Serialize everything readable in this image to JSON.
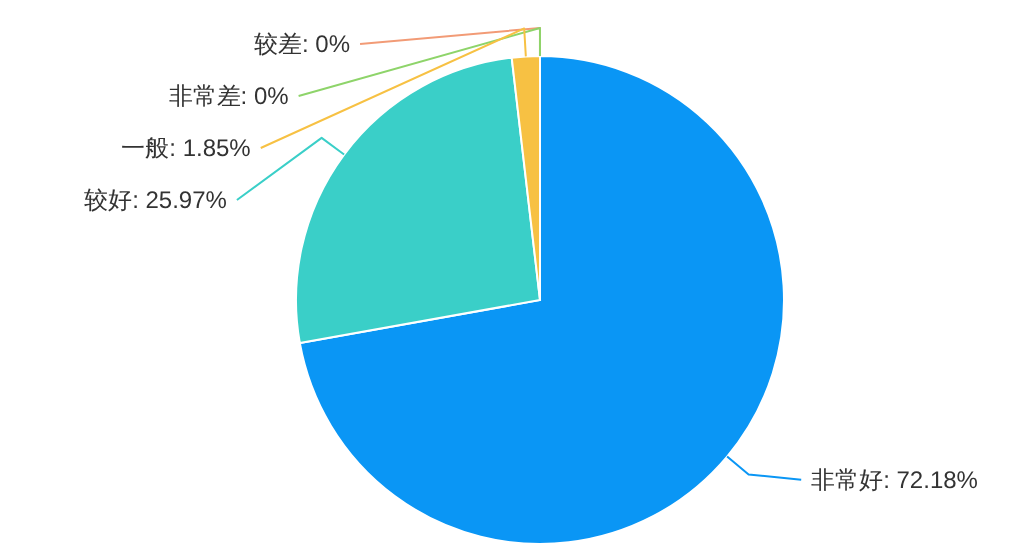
{
  "chart_data": {
    "type": "pie",
    "categories": [
      "非常好",
      "较好",
      "一般",
      "非常差",
      "较差"
    ],
    "values": [
      72.18,
      25.97,
      1.85,
      0,
      0
    ],
    "value_labels": [
      ": 72.18%",
      ": 25.97%",
      ": 1.85%",
      ": 0%",
      ": 0%"
    ],
    "colors": [
      "#0a96f5",
      "#3acfc8",
      "#f7c143",
      "#8ed46a",
      "#f29b76"
    ]
  }
}
